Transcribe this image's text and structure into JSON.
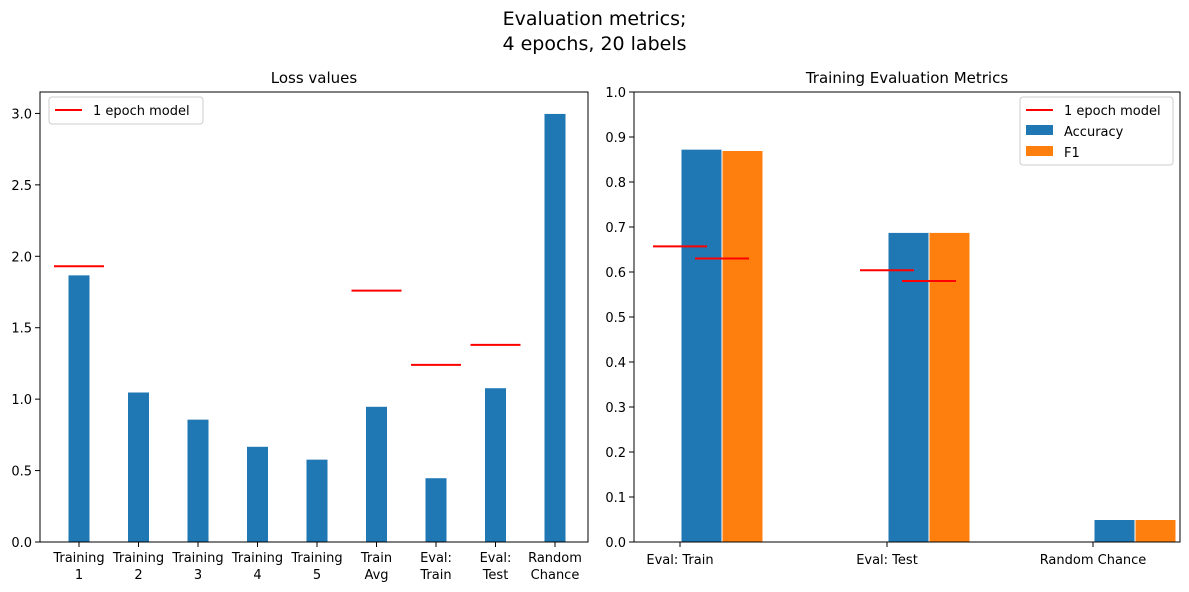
{
  "figure": {
    "title_line1": "Evaluation metrics;",
    "title_line2": "4 epochs, 20 labels"
  },
  "chart_data": [
    {
      "type": "bar",
      "title": "Loss values",
      "xlabel": "",
      "ylabel": "",
      "categories": [
        [
          "Training",
          "1"
        ],
        [
          "Training",
          "2"
        ],
        [
          "Training",
          "3"
        ],
        [
          "Training",
          "4"
        ],
        [
          "Training",
          "5"
        ],
        [
          "Train",
          "Avg"
        ],
        [
          "Eval:",
          "Train"
        ],
        [
          "Eval:",
          "Test"
        ],
        [
          "Random",
          "Chance"
        ]
      ],
      "ylim": [
        0,
        3.15
      ],
      "yticks": [
        0.0,
        0.5,
        1.0,
        1.5,
        2.0,
        2.5,
        3.0
      ],
      "ytick_labels": [
        "0.0",
        "0.5",
        "1.0",
        "1.5",
        "2.0",
        "2.5",
        "3.0"
      ],
      "series": [
        {
          "values": [
            1.87,
            1.05,
            0.86,
            0.67,
            0.58,
            0.95,
            0.45,
            1.08,
            3.0
          ],
          "color": "#1f77b4"
        }
      ],
      "reference": {
        "name": "1 epoch model",
        "color": "#ff0000",
        "values": [
          1.93,
          null,
          null,
          null,
          null,
          1.76,
          1.24,
          1.38,
          null
        ]
      },
      "legend": {
        "position": "upper-left",
        "entries": [
          "1 epoch model"
        ]
      },
      "grid": false
    },
    {
      "type": "bar",
      "title": "Training Evaluation Metrics",
      "xlabel": "",
      "ylabel": "",
      "categories": [
        "Eval: Train",
        "Eval: Test",
        "Random Chance"
      ],
      "ylim": [
        0,
        1.0
      ],
      "yticks": [
        0.0,
        0.1,
        0.2,
        0.3,
        0.4,
        0.5,
        0.6,
        0.7,
        0.8,
        0.9,
        1.0
      ],
      "ytick_labels": [
        "0.0",
        "0.1",
        "0.2",
        "0.3",
        "0.4",
        "0.5",
        "0.6",
        "0.7",
        "0.8",
        "0.9",
        "1.0"
      ],
      "series": [
        {
          "name": "Accuracy",
          "values": [
            0.873,
            0.688,
            0.05
          ],
          "color": "#1f77b4"
        },
        {
          "name": "F1",
          "values": [
            0.87,
            0.688,
            0.05
          ],
          "color": "#ff7f0e"
        }
      ],
      "reference": {
        "name": "1 epoch model",
        "color": "#ff0000",
        "accuracy_values": [
          0.657,
          0.604,
          null
        ],
        "f1_values": [
          0.63,
          0.58,
          null
        ]
      },
      "legend": {
        "position": "upper-right",
        "entries": [
          "1 epoch model",
          "Accuracy",
          "F1"
        ]
      },
      "grid": false
    }
  ]
}
